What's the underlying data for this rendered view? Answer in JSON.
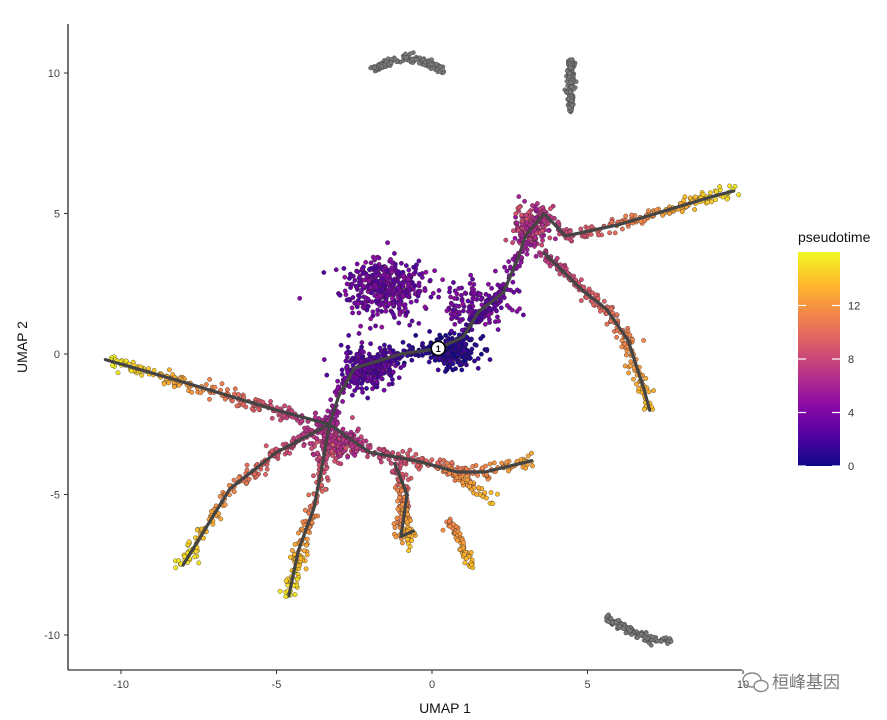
{
  "chart_data": {
    "type": "scatter",
    "title": "",
    "xlabel": "UMAP 1",
    "ylabel": "UMAP 2",
    "xlim": [
      -11.8,
      10.5
    ],
    "ylim": [
      -11.5,
      11.8
    ],
    "x_ticks": [
      -10,
      -5,
      0,
      5,
      10
    ],
    "y_ticks": [
      -10,
      -5,
      0,
      5,
      10
    ],
    "x_tick_labels": [
      "-10",
      "-5",
      "0",
      "5",
      "10"
    ],
    "y_tick_labels": [
      "-10",
      "-5",
      "0",
      "5",
      "10"
    ],
    "grid": false,
    "color_variable": "pseudotime",
    "color_range": [
      0,
      16
    ],
    "colorbar": {
      "title": "pseudotime",
      "ticks": [
        0,
        4,
        8,
        12
      ],
      "tick_labels": [
        "0",
        "4",
        "8",
        "12"
      ],
      "colors": [
        "#0d0887",
        "#5302a3",
        "#8b0aa5",
        "#b83289",
        "#db5c68",
        "#f48849",
        "#febc2a",
        "#f0f921"
      ],
      "placement": "right"
    },
    "root_node": {
      "label": "1",
      "x": 0.2,
      "y": 0.2
    },
    "trajectory": [
      [
        [
          0.2,
          0.2
        ],
        [
          -1.0,
          0.0
        ],
        [
          -2.5,
          -0.5
        ],
        [
          -3.0,
          -1.5
        ],
        [
          -3.3,
          -2.5
        ]
      ],
      [
        [
          0.2,
          0.2
        ],
        [
          1.0,
          0.6
        ],
        [
          1.5,
          1.5
        ],
        [
          2.3,
          2.2
        ],
        [
          2.8,
          3.5
        ],
        [
          3.0,
          4.2
        ]
      ],
      [
        [
          3.0,
          4.2
        ],
        [
          3.6,
          5.0
        ],
        [
          4.3,
          4.2
        ]
      ],
      [
        [
          4.3,
          4.2
        ],
        [
          6.0,
          4.6
        ],
        [
          7.5,
          5.1
        ],
        [
          9.0,
          5.6
        ],
        [
          9.7,
          5.8
        ]
      ],
      [
        [
          3.6,
          3.6
        ],
        [
          4.8,
          2.3
        ],
        [
          5.6,
          1.6
        ],
        [
          6.3,
          0.5
        ],
        [
          6.8,
          -1.2
        ],
        [
          7.0,
          -2.0
        ]
      ],
      [
        [
          -3.3,
          -2.5
        ],
        [
          -5.0,
          -2.0
        ],
        [
          -8.0,
          -1.0
        ],
        [
          -10.5,
          -0.2
        ]
      ],
      [
        [
          -3.3,
          -2.5
        ],
        [
          -5.0,
          -3.5
        ],
        [
          -6.5,
          -4.8
        ],
        [
          -8.0,
          -7.5
        ]
      ],
      [
        [
          -3.3,
          -2.5
        ],
        [
          -3.5,
          -3.8
        ],
        [
          -3.8,
          -5.5
        ],
        [
          -4.3,
          -7.0
        ],
        [
          -4.6,
          -8.6
        ]
      ],
      [
        [
          -3.3,
          -2.5
        ],
        [
          -2.0,
          -3.5
        ],
        [
          -0.5,
          -3.8
        ],
        [
          0.8,
          -4.2
        ],
        [
          1.7,
          -4.2
        ],
        [
          3.2,
          -3.8
        ]
      ],
      [
        [
          -1.2,
          -3.9
        ],
        [
          -0.8,
          -5.0
        ],
        [
          -1.0,
          -6.5
        ],
        [
          -0.6,
          -6.3
        ]
      ]
    ],
    "series": [
      {
        "name": "root-cluster",
        "cx": 0.6,
        "cy": 0.1,
        "sx": 0.8,
        "sy": 0.5,
        "n": 240,
        "t": [
          0.0,
          2.0
        ]
      },
      {
        "name": "upper-left-cluster",
        "cx": -1.6,
        "cy": 2.4,
        "sx": 1.2,
        "sy": 0.9,
        "n": 450,
        "t": [
          2.0,
          5.0
        ]
      },
      {
        "name": "left-mid-cluster",
        "cx": -2.0,
        "cy": -0.5,
        "sx": 0.8,
        "sy": 0.6,
        "n": 260,
        "t": [
          1.5,
          4.0
        ]
      },
      {
        "name": "junction-cluster",
        "cx": -3.0,
        "cy": -3.2,
        "sx": 0.6,
        "sy": 0.5,
        "n": 170,
        "t": [
          6.0,
          9.0
        ]
      },
      {
        "name": "upper-right-cluster",
        "cx": 3.2,
        "cy": 4.5,
        "sx": 0.5,
        "sy": 0.7,
        "n": 180,
        "t": [
          5.0,
          9.0
        ]
      },
      {
        "name": "bridge-cluster",
        "cx": 1.5,
        "cy": 1.7,
        "sx": 1.0,
        "sy": 0.8,
        "n": 140,
        "t": [
          2.5,
          5.0
        ]
      }
    ],
    "disconnected_clusters": [
      {
        "name": "top-arc",
        "x_range": [
          -2.0,
          0.4
        ],
        "y_range": [
          10.0,
          10.6
        ],
        "color": "#7a7a7a"
      },
      {
        "name": "top-right-line",
        "x_range": [
          4.3,
          4.6
        ],
        "y_range": [
          8.6,
          10.5
        ],
        "color": "#7a7a7a"
      },
      {
        "name": "bottom-right-arc",
        "x_range": [
          5.6,
          7.7
        ],
        "y_range": [
          -10.2,
          -9.3
        ],
        "color": "#7a7a7a"
      }
    ]
  },
  "watermark": "桓峰基因"
}
